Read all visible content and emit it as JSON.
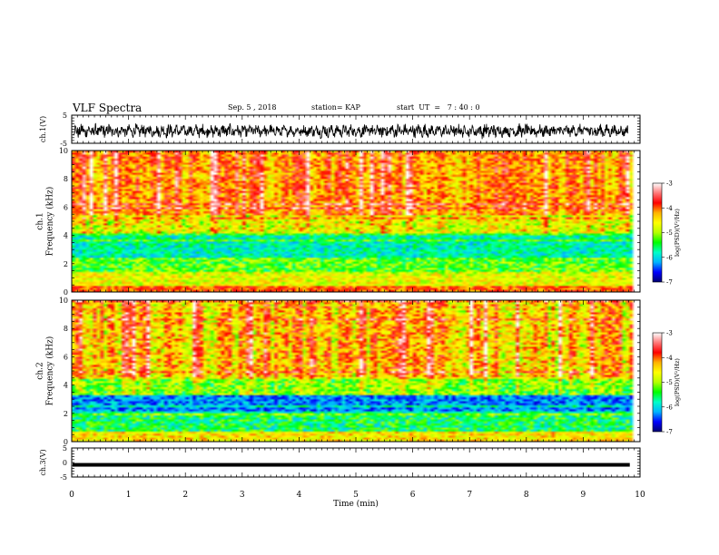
{
  "header": {
    "title": "VLF Spectra",
    "date": "Sep. 5 , 2018",
    "station": "station= KAP",
    "start": "start  UT  =   7 : 40 : 0"
  },
  "chart_data": {
    "type": "heatmap",
    "time_axis": {
      "label": "Time  (min)",
      "range": [
        0,
        10
      ],
      "ticks": [
        "0",
        "1",
        "2",
        "3",
        "4",
        "5",
        "6",
        "7",
        "8",
        "9",
        "10"
      ]
    },
    "waveform_ch1": {
      "ylabel": "ch.1(V)",
      "range": [
        -5,
        5
      ],
      "ticks": [
        "5",
        "-5"
      ],
      "color": "#000000"
    },
    "spectrogram_ch1": {
      "ylabel": "ch.1\nFrequency  (kHz)",
      "freq_range_khz": [
        0,
        10
      ],
      "ticks": [
        "0",
        "2",
        "4",
        "6",
        "8",
        "10"
      ],
      "data_end_min": 9.82,
      "colorbar": {
        "label": "log(PSD)(V²/Hz)",
        "range": [
          -7,
          -3
        ],
        "ticks": [
          "-3",
          "-4",
          "-5",
          "-6",
          "-7"
        ]
      }
    },
    "spectrogram_ch2": {
      "ylabel": "ch.2\nFrequency  (kHz)",
      "freq_range_khz": [
        0,
        10
      ],
      "ticks": [
        "0",
        "2",
        "4",
        "6",
        "8",
        "10"
      ],
      "data_end_min": 9.82,
      "colorbar": {
        "label": "log(PSD)(V²/Hz)",
        "range": [
          -7,
          -3
        ],
        "ticks": [
          "-3",
          "-4",
          "-5",
          "-6",
          "-7"
        ]
      }
    },
    "waveform_ch3": {
      "ylabel": "ch.3(V)",
      "range": [
        -5,
        5
      ],
      "ticks": [
        "5",
        "0",
        "-5"
      ],
      "level_v": -0.8,
      "color": "#000000"
    },
    "colormap": [
      "#000070",
      "#0000ff",
      "#00b4ff",
      "#00ffc8",
      "#00ff00",
      "#b4ff00",
      "#ffff00",
      "#ffb400",
      "#ff0000",
      "#ff7878",
      "#ffffff"
    ]
  }
}
